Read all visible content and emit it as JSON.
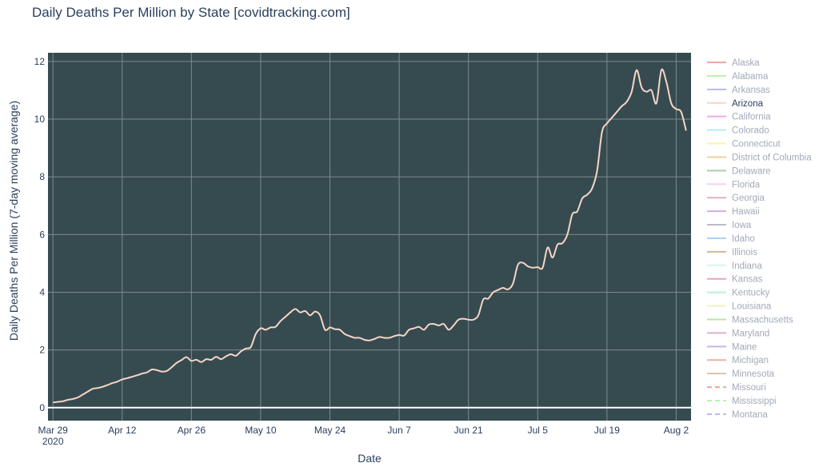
{
  "chart_data": {
    "type": "line",
    "title": "Daily Deaths Per Million by State [covidtracking.com]",
    "xlabel": "Date",
    "ylabel": "Daily Deaths Per Million (7-day moving average)",
    "xlim": [
      "2020-03-28",
      "2020-08-05"
    ],
    "ylim": [
      -0.45,
      12.3
    ],
    "yticks": [
      0,
      2,
      4,
      6,
      8,
      10,
      12
    ],
    "xticks": [
      {
        "date": "2020-03-29",
        "label": "Mar 29",
        "sublabel": "2020"
      },
      {
        "date": "2020-04-12",
        "label": "Apr 12"
      },
      {
        "date": "2020-04-26",
        "label": "Apr 26"
      },
      {
        "date": "2020-05-10",
        "label": "May 10"
      },
      {
        "date": "2020-05-24",
        "label": "May 24"
      },
      {
        "date": "2020-06-07",
        "label": "Jun 7"
      },
      {
        "date": "2020-06-21",
        "label": "Jun 21"
      },
      {
        "date": "2020-07-05",
        "label": "Jul 5"
      },
      {
        "date": "2020-07-19",
        "label": "Jul 19"
      },
      {
        "date": "2020-08-02",
        "label": "Aug 2"
      }
    ],
    "grid": true,
    "plot_background": "#364b4f",
    "grid_color": "#7d8b8d",
    "legend_position": "right",
    "active_series": "Arizona",
    "series": [
      {
        "name": "Arizona",
        "color": "#f6d5c8",
        "points": [
          [
            "2020-03-29",
            0.18
          ],
          [
            "2020-03-30",
            0.2
          ],
          [
            "2020-03-31",
            0.22
          ],
          [
            "2020-04-01",
            0.27
          ],
          [
            "2020-04-02",
            0.3
          ],
          [
            "2020-04-03",
            0.35
          ],
          [
            "2020-04-04",
            0.45
          ],
          [
            "2020-04-05",
            0.55
          ],
          [
            "2020-04-06",
            0.65
          ],
          [
            "2020-04-07",
            0.68
          ],
          [
            "2020-04-08",
            0.72
          ],
          [
            "2020-04-09",
            0.78
          ],
          [
            "2020-04-10",
            0.85
          ],
          [
            "2020-04-11",
            0.9
          ],
          [
            "2020-04-12",
            0.98
          ],
          [
            "2020-04-13",
            1.02
          ],
          [
            "2020-04-14",
            1.07
          ],
          [
            "2020-04-15",
            1.12
          ],
          [
            "2020-04-16",
            1.18
          ],
          [
            "2020-04-17",
            1.22
          ],
          [
            "2020-04-18",
            1.32
          ],
          [
            "2020-04-19",
            1.3
          ],
          [
            "2020-04-20",
            1.25
          ],
          [
            "2020-04-21",
            1.27
          ],
          [
            "2020-04-22",
            1.4
          ],
          [
            "2020-04-23",
            1.55
          ],
          [
            "2020-04-24",
            1.65
          ],
          [
            "2020-04-25",
            1.75
          ],
          [
            "2020-04-26",
            1.62
          ],
          [
            "2020-04-27",
            1.66
          ],
          [
            "2020-04-28",
            1.58
          ],
          [
            "2020-04-29",
            1.68
          ],
          [
            "2020-04-30",
            1.66
          ],
          [
            "2020-05-01",
            1.76
          ],
          [
            "2020-05-02",
            1.68
          ],
          [
            "2020-05-03",
            1.78
          ],
          [
            "2020-05-04",
            1.85
          ],
          [
            "2020-05-05",
            1.8
          ],
          [
            "2020-05-06",
            1.95
          ],
          [
            "2020-05-07",
            2.05
          ],
          [
            "2020-05-08",
            2.1
          ],
          [
            "2020-05-09",
            2.55
          ],
          [
            "2020-05-10",
            2.75
          ],
          [
            "2020-05-11",
            2.7
          ],
          [
            "2020-05-12",
            2.78
          ],
          [
            "2020-05-13",
            2.8
          ],
          [
            "2020-05-14",
            3.0
          ],
          [
            "2020-05-15",
            3.15
          ],
          [
            "2020-05-16",
            3.3
          ],
          [
            "2020-05-17",
            3.42
          ],
          [
            "2020-05-18",
            3.3
          ],
          [
            "2020-05-19",
            3.35
          ],
          [
            "2020-05-20",
            3.2
          ],
          [
            "2020-05-21",
            3.33
          ],
          [
            "2020-05-22",
            3.2
          ],
          [
            "2020-05-23",
            2.7
          ],
          [
            "2020-05-24",
            2.78
          ],
          [
            "2020-05-25",
            2.72
          ],
          [
            "2020-05-26",
            2.7
          ],
          [
            "2020-05-27",
            2.55
          ],
          [
            "2020-05-28",
            2.48
          ],
          [
            "2020-05-29",
            2.42
          ],
          [
            "2020-05-30",
            2.42
          ],
          [
            "2020-05-31",
            2.35
          ],
          [
            "2020-06-01",
            2.33
          ],
          [
            "2020-06-02",
            2.38
          ],
          [
            "2020-06-03",
            2.45
          ],
          [
            "2020-06-04",
            2.42
          ],
          [
            "2020-06-05",
            2.42
          ],
          [
            "2020-06-06",
            2.48
          ],
          [
            "2020-06-07",
            2.52
          ],
          [
            "2020-06-08",
            2.5
          ],
          [
            "2020-06-09",
            2.7
          ],
          [
            "2020-06-10",
            2.75
          ],
          [
            "2020-06-11",
            2.8
          ],
          [
            "2020-06-12",
            2.7
          ],
          [
            "2020-06-13",
            2.88
          ],
          [
            "2020-06-14",
            2.9
          ],
          [
            "2020-06-15",
            2.85
          ],
          [
            "2020-06-16",
            2.9
          ],
          [
            "2020-06-17",
            2.7
          ],
          [
            "2020-06-18",
            2.85
          ],
          [
            "2020-06-19",
            3.05
          ],
          [
            "2020-06-20",
            3.08
          ],
          [
            "2020-06-21",
            3.05
          ],
          [
            "2020-06-22",
            3.05
          ],
          [
            "2020-06-23",
            3.2
          ],
          [
            "2020-06-24",
            3.75
          ],
          [
            "2020-06-25",
            3.78
          ],
          [
            "2020-06-26",
            4.0
          ],
          [
            "2020-06-27",
            4.08
          ],
          [
            "2020-06-28",
            4.15
          ],
          [
            "2020-06-29",
            4.1
          ],
          [
            "2020-06-30",
            4.3
          ],
          [
            "2020-07-01",
            4.95
          ],
          [
            "2020-07-02",
            5.02
          ],
          [
            "2020-07-03",
            4.9
          ],
          [
            "2020-07-04",
            4.85
          ],
          [
            "2020-07-05",
            4.87
          ],
          [
            "2020-07-06",
            4.85
          ],
          [
            "2020-07-07",
            5.55
          ],
          [
            "2020-07-08",
            5.2
          ],
          [
            "2020-07-09",
            5.65
          ],
          [
            "2020-07-10",
            5.7
          ],
          [
            "2020-07-11",
            6.0
          ],
          [
            "2020-07-12",
            6.7
          ],
          [
            "2020-07-13",
            6.8
          ],
          [
            "2020-07-14",
            7.25
          ],
          [
            "2020-07-15",
            7.38
          ],
          [
            "2020-07-16",
            7.6
          ],
          [
            "2020-07-17",
            8.2
          ],
          [
            "2020-07-18",
            9.55
          ],
          [
            "2020-07-19",
            9.85
          ],
          [
            "2020-07-20",
            10.05
          ],
          [
            "2020-07-21",
            10.25
          ],
          [
            "2020-07-22",
            10.45
          ],
          [
            "2020-07-23",
            10.6
          ],
          [
            "2020-07-24",
            10.95
          ],
          [
            "2020-07-25",
            11.7
          ],
          [
            "2020-07-26",
            11.1
          ],
          [
            "2020-07-27",
            10.95
          ],
          [
            "2020-07-28",
            11.0
          ],
          [
            "2020-07-29",
            10.55
          ],
          [
            "2020-07-30",
            11.7
          ],
          [
            "2020-07-31",
            11.3
          ],
          [
            "2020-08-01",
            10.55
          ],
          [
            "2020-08-02",
            10.35
          ],
          [
            "2020-08-03",
            10.25
          ],
          [
            "2020-08-04",
            9.6
          ]
        ]
      }
    ],
    "legend": [
      {
        "name": "Alaska",
        "color": "#f4a6a0",
        "dash": "solid"
      },
      {
        "name": "Alabama",
        "color": "#b8f0a8",
        "dash": "solid"
      },
      {
        "name": "Arkansas",
        "color": "#b6baf2",
        "dash": "solid"
      },
      {
        "name": "Arizona",
        "color": "#f6d5c8",
        "dash": "solid"
      },
      {
        "name": "California",
        "color": "#f0a8f0",
        "dash": "solid"
      },
      {
        "name": "Colorado",
        "color": "#b0eef6",
        "dash": "solid"
      },
      {
        "name": "Connecticut",
        "color": "#faf4a8",
        "dash": "solid"
      },
      {
        "name": "District of Columbia",
        "color": "#f3cfa0",
        "dash": "solid"
      },
      {
        "name": "Delaware",
        "color": "#a8cfa8",
        "dash": "solid"
      },
      {
        "name": "Florida",
        "color": "#f6d0f2",
        "dash": "solid"
      },
      {
        "name": "Georgia",
        "color": "#e0b4b8",
        "dash": "solid"
      },
      {
        "name": "Hawaii",
        "color": "#d6a8f2",
        "dash": "solid"
      },
      {
        "name": "Iowa",
        "color": "#b8bcc6",
        "dash": "solid"
      },
      {
        "name": "Idaho",
        "color": "#a8d4f4",
        "dash": "solid"
      },
      {
        "name": "Illinois",
        "color": "#d4b890",
        "dash": "solid"
      },
      {
        "name": "Indiana",
        "color": "#dcf6ec",
        "dash": "solid"
      },
      {
        "name": "Kansas",
        "color": "#f2a0c0",
        "dash": "solid"
      },
      {
        "name": "Kentucky",
        "color": "#b8f2d0",
        "dash": "solid"
      },
      {
        "name": "Louisiana",
        "color": "#f2f2c0",
        "dash": "solid"
      },
      {
        "name": "Massachusetts",
        "color": "#bce6a0",
        "dash": "solid"
      },
      {
        "name": "Maryland",
        "color": "#dcb0c8",
        "dash": "solid"
      },
      {
        "name": "Maine",
        "color": "#c8b4e4",
        "dash": "solid"
      },
      {
        "name": "Michigan",
        "color": "#f4b0a4",
        "dash": "solid"
      },
      {
        "name": "Minnesota",
        "color": "#d8c4b4",
        "dash": "solid"
      },
      {
        "name": "Missouri",
        "color": "#f4a690",
        "dash": "dash"
      },
      {
        "name": "Mississippi",
        "color": "#b8f4a8",
        "dash": "dash"
      },
      {
        "name": "Montana",
        "color": "#b6b8f4",
        "dash": "dash"
      }
    ]
  }
}
